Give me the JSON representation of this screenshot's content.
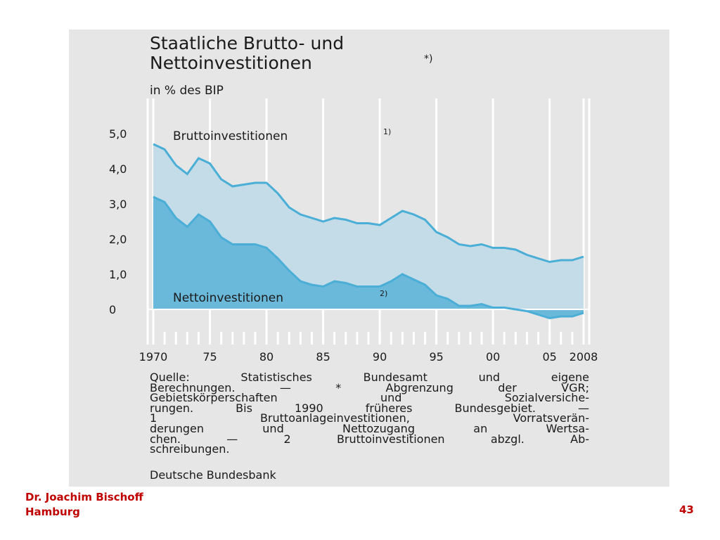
{
  "chart_data": {
    "type": "area",
    "title_lines": [
      "Staatliche Brutto- und",
      "Nettoinvestitionen"
    ],
    "title_note": "*)",
    "subtitle": "in % des BIP",
    "x": [
      1970,
      1971,
      1972,
      1973,
      1974,
      1975,
      1976,
      1977,
      1978,
      1979,
      1980,
      1981,
      1982,
      1983,
      1984,
      1985,
      1986,
      1987,
      1988,
      1989,
      1990,
      1991,
      1992,
      1993,
      1994,
      1995,
      1996,
      1997,
      1998,
      1999,
      2000,
      2001,
      2002,
      2003,
      2004,
      2005,
      2006,
      2007,
      2008
    ],
    "series": [
      {
        "name": "Bruttoinvestitionen",
        "note": "1)",
        "color": "#4aaed6",
        "fill": "#c4dce7",
        "values": [
          4.7,
          4.55,
          4.1,
          3.85,
          4.3,
          4.15,
          3.7,
          3.5,
          3.55,
          3.6,
          3.6,
          3.3,
          2.9,
          2.7,
          2.6,
          2.5,
          2.6,
          2.55,
          2.45,
          2.45,
          2.4,
          2.6,
          2.8,
          2.7,
          2.55,
          2.2,
          2.05,
          1.85,
          1.8,
          1.85,
          1.75,
          1.75,
          1.7,
          1.55,
          1.45,
          1.35,
          1.4,
          1.4,
          1.5
        ]
      },
      {
        "name": "Nettoinvestitionen",
        "note": "2)",
        "color": "#4aaed6",
        "fill": "#6bb9da",
        "values": [
          3.2,
          3.05,
          2.6,
          2.35,
          2.7,
          2.5,
          2.05,
          1.85,
          1.85,
          1.85,
          1.75,
          1.45,
          1.1,
          0.8,
          0.7,
          0.65,
          0.8,
          0.75,
          0.65,
          0.65,
          0.65,
          0.8,
          1.0,
          0.85,
          0.7,
          0.4,
          0.3,
          0.1,
          0.1,
          0.15,
          0.05,
          0.05,
          0.0,
          -0.05,
          -0.15,
          -0.25,
          -0.2,
          -0.2,
          -0.1
        ]
      }
    ],
    "xlim": [
      1970,
      2008
    ],
    "xticks": [
      1970,
      {
        "value": 1975,
        "label": "75"
      },
      {
        "value": 1980,
        "label": "80"
      },
      {
        "value": 1985,
        "label": "85"
      },
      {
        "value": 1990,
        "label": "90"
      },
      {
        "value": 1995,
        "label": "95"
      },
      {
        "value": 2000,
        "label": "00"
      },
      {
        "value": 2005,
        "label": "05"
      },
      2008
    ],
    "ylim": [
      -1,
      6
    ],
    "yticks": [
      0,
      {
        "value": 1,
        "label": "1,0"
      },
      {
        "value": 2,
        "label": "2,0"
      },
      {
        "value": 3,
        "label": "3,0"
      },
      {
        "value": 4,
        "label": "4,0"
      },
      {
        "value": 5,
        "label": "5,0"
      }
    ],
    "notes": [
      "Quelle: Statistisches Bundesamt und eigene",
      "Berechnungen. — * Abgrenzung der VGR;",
      "Gebietskörperschaften und Sozialversiche-",
      "rungen. Bis 1990 früheres Bundesgebiet. —",
      "1 Bruttoanlageinvestitionen, Vorratsverän-",
      "derungen und Nettozugang an Wertsa-",
      "chen. — 2 Bruttoinvestitionen abzgl. Ab-",
      "schreibungen."
    ],
    "source": "Deutsche Bundesbank"
  },
  "footer": {
    "author": "Dr. Joachim Bischoff",
    "place": "Hamburg",
    "page": "43"
  }
}
